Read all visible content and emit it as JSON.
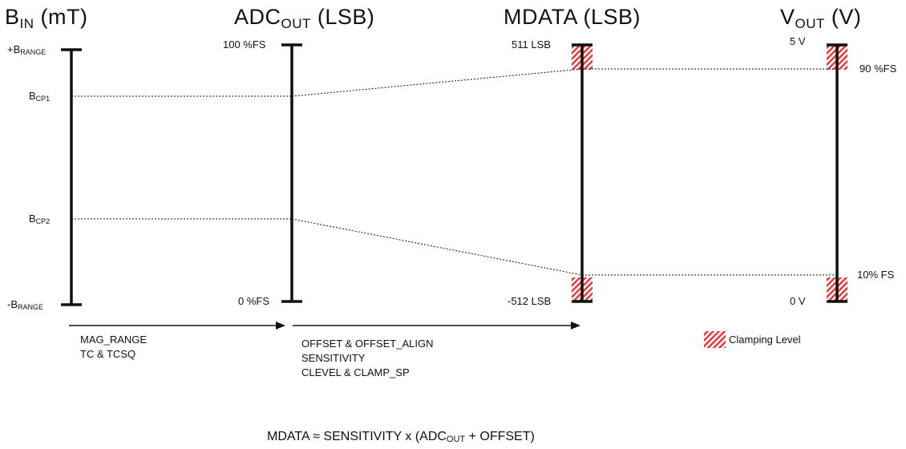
{
  "headers": {
    "bin": {
      "main": "B",
      "sub": "IN",
      "suffix": " (mT)"
    },
    "adc": {
      "main": "ADC",
      "sub": "OUT",
      "suffix": " (LSB)"
    },
    "mdata": {
      "main": "MDATA (LSB)"
    },
    "vout": {
      "main": "V",
      "sub": "OUT",
      "suffix": " (V)"
    }
  },
  "bin_axis": {
    "top": {
      "main": "+B",
      "sub": "RANGE"
    },
    "cp1": {
      "main": "B",
      "sub": "CP1"
    },
    "cp2": {
      "main": "B",
      "sub": "CP2"
    },
    "bottom": {
      "main": "-B",
      "sub": "RANGE"
    }
  },
  "adc_axis": {
    "top": "100 %FS",
    "bottom": "0 %FS"
  },
  "mdata_axis": {
    "top": "511 LSB",
    "bottom": "-512 LSB"
  },
  "vout_axis": {
    "top": "5 V",
    "bottom": "0 V",
    "upper_clamp": "90 %FS",
    "lower_clamp": "10% FS"
  },
  "stage1": {
    "lines": [
      "MAG_RANGE",
      "TC & TCSQ"
    ]
  },
  "stage2": {
    "lines": [
      "OFFSET & OFFSET_ALIGN",
      "SENSITIVITY",
      "CLEVEL & CLAMP_SP"
    ]
  },
  "legend": {
    "label": "Clamping Level"
  },
  "formula": {
    "left": "MDATA ≈ SENSITIVITY x (ADC",
    "sub": "OUT",
    "right": " + OFFSET)"
  },
  "colors": {
    "axis": "#111111",
    "clamp_hatch": "#e83a3a"
  }
}
